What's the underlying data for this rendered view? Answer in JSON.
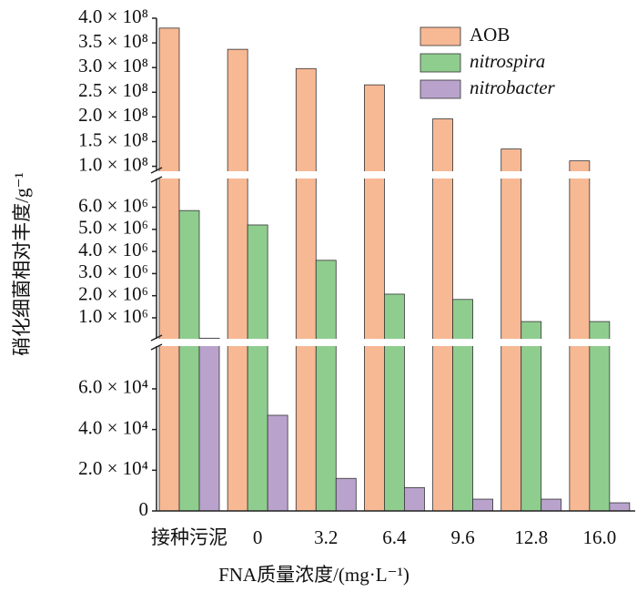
{
  "chart_data": {
    "type": "bar",
    "xlabel": "FNA质量浓度/(mg·L⁻¹)",
    "ylabel": "硝化细菌相对丰度/g⁻¹",
    "categories": [
      "接种污泥",
      "0",
      "3.2",
      "6.4",
      "9.6",
      "12.8",
      "16.0"
    ],
    "series": [
      {
        "name": "AOB",
        "color": "#f7b894",
        "italic": false,
        "values": [
          380000000,
          337000000,
          298000000,
          265000000,
          196000000,
          135000000,
          111000000
        ]
      },
      {
        "name": "nitrospira",
        "color": "#8fcd8f",
        "italic": true,
        "values": [
          5850000,
          5200000,
          3600000,
          2070000,
          1830000,
          830000,
          830000
        ]
      },
      {
        "name": "nitrobacter",
        "color": "#b9a3cc",
        "italic": true,
        "values": [
          78000,
          47000,
          16000,
          11500,
          5800,
          5800,
          4000
        ]
      }
    ],
    "axis_segments": [
      {
        "ylim": [
          0,
          81000
        ],
        "yticks": [
          0,
          {
            "value": 20000,
            "label": "2.0 × 10⁴"
          },
          {
            "value": 40000,
            "label": "4.0 × 10⁴"
          },
          {
            "value": 60000,
            "label": "6.0 × 10⁴"
          }
        ]
      },
      {
        "ylim": [
          50000,
          7300000
        ],
        "yticks": [
          {
            "value": 1000000,
            "label": "1.0 × 10⁶"
          },
          {
            "value": 2000000,
            "label": "2.0 × 10⁶"
          },
          {
            "value": 3000000,
            "label": "3.0 × 10⁶"
          },
          {
            "value": 4000000,
            "label": "4.0 × 10⁶"
          },
          {
            "value": 5000000,
            "label": "5.0 × 10⁶"
          },
          {
            "value": 6000000,
            "label": "6.0 × 10⁶"
          }
        ]
      },
      {
        "ylim": [
          90000000,
          400000000
        ],
        "yticks": [
          {
            "value": 100000000,
            "label": "1.0 × 10⁸"
          },
          {
            "value": 150000000,
            "label": "1.5 × 10⁸"
          },
          {
            "value": 200000000,
            "label": "2.0 × 10⁸"
          },
          {
            "value": 250000000,
            "label": "2.5 × 10⁸"
          },
          {
            "value": 300000000,
            "label": "3.0 × 10⁸"
          },
          {
            "value": 350000000,
            "label": "3.5 × 10⁸"
          },
          {
            "value": 400000000,
            "label": "4.0 × 10⁸"
          }
        ]
      }
    ],
    "legend": "upper right"
  }
}
